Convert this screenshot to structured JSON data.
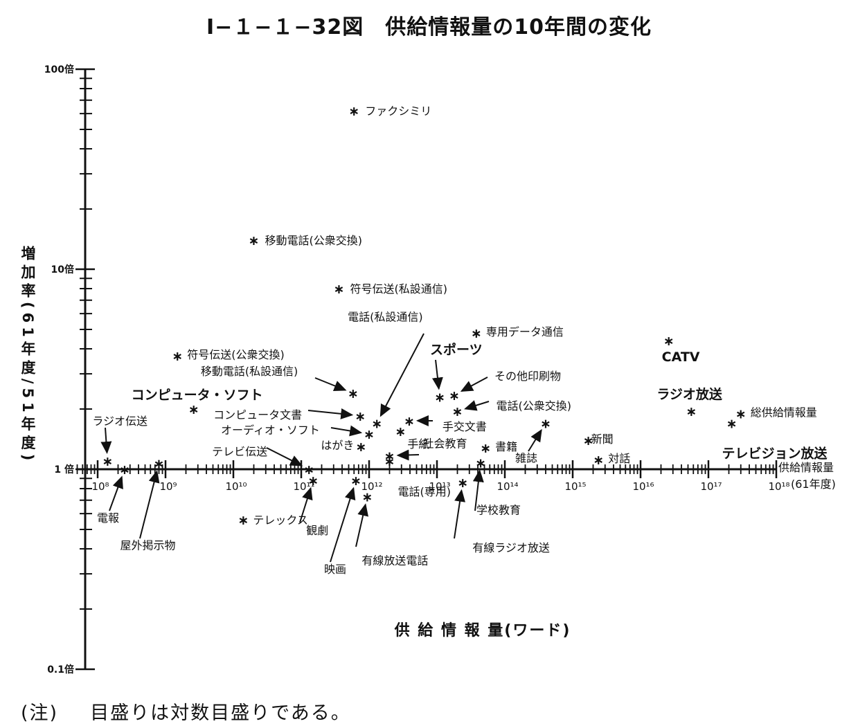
{
  "title": "Ⅰ−１−１−32図　供給情報量の10年間の変化",
  "note": {
    "label": "(注)",
    "text": "目盛りは対数目盛りである。"
  },
  "chart_data": {
    "type": "scatter",
    "xscale": "log",
    "yscale": "log",
    "xlim": [
      50000000,
      1000000000000000000
    ],
    "ylim": [
      0.1,
      100
    ],
    "xlabel": "供 給 情 報 量(ワード)",
    "ylabel": "増加率(61年度/51年度)",
    "x_axis_end_label": [
      "供給情報量",
      "(61年度)"
    ],
    "x_ticks": [
      {
        "value": 100000000,
        "label": "10⁸"
      },
      {
        "value": 1000000000,
        "label": "10⁹"
      },
      {
        "value": 10000000000,
        "label": "10¹⁰"
      },
      {
        "value": 100000000000,
        "label": "10¹¹"
      },
      {
        "value": 1000000000000,
        "label": "10¹²"
      },
      {
        "value": 10000000000000,
        "label": "10¹³"
      },
      {
        "value": 100000000000000,
        "label": "10¹⁴"
      },
      {
        "value": 1000000000000000,
        "label": "10¹⁵"
      },
      {
        "value": 10000000000000000,
        "label": "10¹⁶"
      },
      {
        "value": 100000000000000000,
        "label": "10¹⁷"
      },
      {
        "value": 1000000000000000000,
        "label": "10¹⁸"
      }
    ],
    "y_ticks": [
      {
        "value": 0.1,
        "label": "0.1倍"
      },
      {
        "value": 1,
        "label": "1 倍"
      },
      {
        "value": 10,
        "label": "10倍"
      },
      {
        "value": 100,
        "label": "100倍"
      }
    ],
    "points": [
      {
        "name": "ファクシミリ",
        "x": 600000000000.0,
        "y": 62
      },
      {
        "name": "移動電話(公衆交換)",
        "x": 20000000000.0,
        "y": 14
      },
      {
        "name": "符号伝送(私設通信)",
        "x": 360000000000.0,
        "y": 8.0
      },
      {
        "name": "電話(私設通信)",
        "x": 1300000000000.0,
        "y": 1.7
      },
      {
        "name": "専用データ通信",
        "x": 38000000000000.0,
        "y": 4.8
      },
      {
        "name": "スポーツ",
        "x": 11000000000000.0,
        "y": 2.3
      },
      {
        "name": "符号伝送(公衆交換)",
        "x": 1500000000.0,
        "y": 3.7
      },
      {
        "name": "移動電話(私設通信)",
        "x": 580000000000.0,
        "y": 2.4
      },
      {
        "name": "その他印刷物",
        "x": 18000000000000.0,
        "y": 2.35
      },
      {
        "name": "コンピュータ・ソフト",
        "x": 2600000000.0,
        "y": 2.0
      },
      {
        "name": "コンピュータ文書",
        "x": 740000000000.0,
        "y": 1.85
      },
      {
        "name": "電話(公衆交換)",
        "x": 20000000000000.0,
        "y": 1.95
      },
      {
        "name": "手交文書",
        "x": 3900000000000.0,
        "y": 1.75
      },
      {
        "name": "オーディオ・ソフト",
        "x": 1000000000000.0,
        "y": 1.5
      },
      {
        "name": "手紙",
        "x": 2900000000000.0,
        "y": 1.55
      },
      {
        "name": "ラジオ伝送",
        "x": 140000000.0,
        "y": 1.1
      },
      {
        "name": "はがき",
        "x": 760000000000.0,
        "y": 1.3
      },
      {
        "name": "社会教育",
        "x": 2000000000000.0,
        "y": 1.17
      },
      {
        "name": "書籍",
        "x": 52000000000000.0,
        "y": 1.28
      },
      {
        "name": "雑誌",
        "x": 400000000000000.0,
        "y": 1.7
      },
      {
        "name": "新聞",
        "x": 1700000000000000.0,
        "y": 1.4
      },
      {
        "name": "対話",
        "x": 2400000000000000.0,
        "y": 1.12
      },
      {
        "name": "テレビ伝送",
        "x": 130000000000.0,
        "y": 1.0
      },
      {
        "name": "電報",
        "x": 250000000.0,
        "y": 1.0
      },
      {
        "name": "屋外掲示物",
        "x": 800000000.0,
        "y": 1.07
      },
      {
        "name": "電話(専用)",
        "x": 2000000000000.0,
        "y": 1.1
      },
      {
        "name": "学校教育",
        "x": 44000000000000.0,
        "y": 1.08
      },
      {
        "name": "観劇",
        "x": 150000000000.0,
        "y": 0.88
      },
      {
        "name": "映画",
        "x": 640000000000.0,
        "y": 0.88
      },
      {
        "name": "有線放送電話",
        "x": 940000000000.0,
        "y": 0.73
      },
      {
        "name": "有線ラジオ放送",
        "x": 24000000000000.0,
        "y": 0.86
      },
      {
        "name": "テレックス",
        "x": 14000000000.0,
        "y": 0.56
      },
      {
        "name": "CATV",
        "x": 2.6e+16,
        "y": 4.4
      },
      {
        "name": "ラジオ放送",
        "x": 5.6e+16,
        "y": 1.95
      },
      {
        "name": "テレビジョン放送",
        "x": 2.2e+17,
        "y": 1.7
      },
      {
        "name": "総供給情報量",
        "x": 3e+17,
        "y": 1.9
      }
    ]
  }
}
